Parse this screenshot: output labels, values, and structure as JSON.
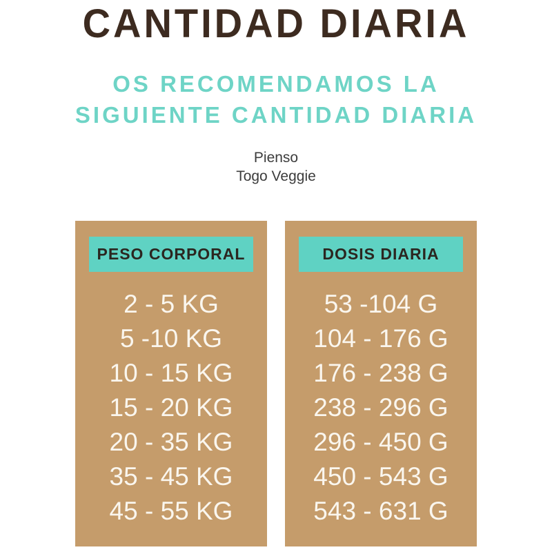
{
  "title": "CANTIDAD DIARIA",
  "subtitle": {
    "line1": "OS RECOMENDAMOS LA",
    "line2": "SIGUIENTE CANTIDAD DIARIA"
  },
  "product": {
    "line1": "Pienso",
    "line2": "Togo Veggie"
  },
  "table": {
    "weight_header": "PESO CORPORAL",
    "dose_header": "DOSIS DIARIA",
    "weights": [
      "2 - 5 KG",
      "5 -10 KG",
      "10 - 15 KG",
      "15 - 20 KG",
      "20 - 35 KG",
      "35 - 45 KG",
      "45 - 55 KG"
    ],
    "doses": [
      "53 -104 G",
      "104 - 176 G",
      "176 - 238 G",
      "238 - 296 G",
      "296 - 450 G",
      "450 - 543 G",
      "543 - 631 G"
    ]
  },
  "colors": {
    "title_brown": "#3d2b20",
    "subtitle_teal": "#6ed4c6",
    "header_box_teal": "#5fd2c3",
    "panel_tan": "#c59c6b",
    "row_text": "#faf6ee",
    "header_text": "#2b2620"
  }
}
